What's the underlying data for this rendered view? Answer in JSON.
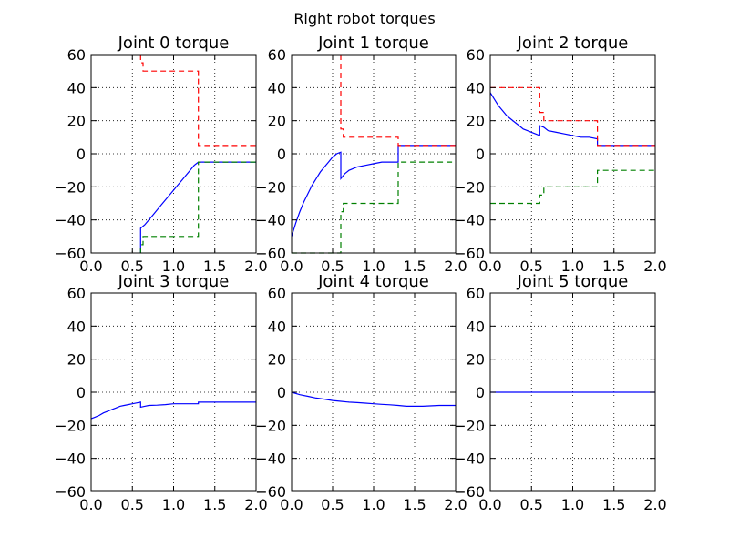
{
  "figure_title": "Right robot torques",
  "colors": {
    "blue": "#0000ff",
    "red": "#ff0000",
    "green": "#008000"
  },
  "chart_data": [
    {
      "type": "line",
      "title": "Joint 0 torque",
      "xlim": [
        0.0,
        2.0
      ],
      "ylim": [
        -60,
        60
      ],
      "xticks": [
        "0.0",
        "0.5",
        "1.0",
        "1.5",
        "2.0"
      ],
      "yticks": [
        "60",
        "40",
        "20",
        "0",
        "−20",
        "−40",
        "−60"
      ],
      "grid": true,
      "series": [
        {
          "color": "#0000ff",
          "style": "solid",
          "x": [
            0.6,
            0.6,
            0.65,
            0.7,
            0.75,
            0.8,
            0.85,
            0.9,
            0.95,
            1.0,
            1.05,
            1.1,
            1.15,
            1.2,
            1.25,
            1.3,
            1.35,
            1.4,
            1.5,
            1.6,
            1.7,
            1.8,
            1.9,
            2.0
          ],
          "y": [
            -60,
            -45,
            -43,
            -40,
            -37,
            -34,
            -31,
            -28,
            -25,
            -22,
            -19,
            -16,
            -13,
            -10,
            -7,
            -5,
            -5,
            -5,
            -5,
            -5,
            -5,
            -5,
            -5,
            -5
          ]
        },
        {
          "color": "#ff0000",
          "style": "dashed",
          "x": [
            0.6,
            0.6,
            0.63,
            0.63,
            1.0,
            1.2,
            1.2,
            1.3,
            1.3,
            2.0
          ],
          "y": [
            60,
            55,
            55,
            50,
            50,
            50,
            50,
            50,
            5,
            5
          ]
        },
        {
          "color": "#008000",
          "style": "dashed",
          "x": [
            0.6,
            0.6,
            0.63,
            0.63,
            1.0,
            1.2,
            1.3,
            1.3,
            2.0
          ],
          "y": [
            -60,
            -55,
            -55,
            -50,
            -50,
            -50,
            -50,
            -5,
            -5
          ]
        }
      ]
    },
    {
      "type": "line",
      "title": "Joint 1 torque",
      "xlim": [
        0.0,
        2.0
      ],
      "ylim": [
        -60,
        60
      ],
      "xticks": [
        "0.0",
        "0.5",
        "1.0",
        "1.5",
        "2.0"
      ],
      "yticks": [
        "60",
        "40",
        "20",
        "0",
        "−20",
        "−40",
        "−60"
      ],
      "grid": true,
      "series": [
        {
          "color": "#0000ff",
          "style": "solid",
          "x": [
            0.0,
            0.05,
            0.1,
            0.15,
            0.2,
            0.25,
            0.3,
            0.35,
            0.4,
            0.45,
            0.5,
            0.55,
            0.6,
            0.6,
            0.65,
            0.7,
            0.8,
            0.9,
            1.0,
            1.1,
            1.2,
            1.3,
            1.3,
            1.4,
            1.6,
            1.8,
            2.0
          ],
          "y": [
            -50,
            -42,
            -35,
            -29,
            -24,
            -19,
            -15,
            -11,
            -8,
            -5,
            -2,
            0,
            1,
            -15,
            -12,
            -10,
            -8,
            -7,
            -6,
            -5,
            -5,
            -5,
            5,
            5,
            5,
            5,
            5
          ]
        },
        {
          "color": "#ff0000",
          "style": "dashed",
          "x": [
            0.6,
            0.6,
            0.63,
            0.63,
            1.0,
            1.2,
            1.3,
            1.3,
            2.0
          ],
          "y": [
            60,
            15,
            15,
            10,
            10,
            10,
            10,
            5,
            5
          ]
        },
        {
          "color": "#008000",
          "style": "dashed",
          "x": [
            0.0,
            0.3,
            0.6,
            0.6,
            0.63,
            0.63,
            1.0,
            1.3,
            1.3,
            2.0
          ],
          "y": [
            -60,
            -60,
            -60,
            -35,
            -35,
            -30,
            -30,
            -30,
            -5,
            -5
          ]
        }
      ]
    },
    {
      "type": "line",
      "title": "Joint 2 torque",
      "xlim": [
        0.0,
        2.0
      ],
      "ylim": [
        -60,
        60
      ],
      "xticks": [
        "0.0",
        "0.5",
        "1.0",
        "1.5",
        "2.0"
      ],
      "yticks": [
        "60",
        "40",
        "20",
        "0",
        "−20",
        "−40",
        "−60"
      ],
      "grid": true,
      "series": [
        {
          "color": "#0000ff",
          "style": "solid",
          "x": [
            0.0,
            0.05,
            0.1,
            0.15,
            0.2,
            0.25,
            0.3,
            0.35,
            0.4,
            0.45,
            0.5,
            0.55,
            0.6,
            0.6,
            0.65,
            0.7,
            0.8,
            0.9,
            1.0,
            1.1,
            1.2,
            1.3,
            1.3,
            1.5,
            2.0
          ],
          "y": [
            37,
            33,
            29,
            26,
            23,
            21,
            19,
            17,
            15,
            14,
            13,
            12,
            11,
            17,
            16,
            14,
            13,
            12,
            11,
            10,
            10,
            9,
            5,
            5,
            5
          ]
        },
        {
          "color": "#ff0000",
          "style": "dashed",
          "x": [
            0.0,
            0.6,
            0.6,
            0.65,
            0.65,
            1.0,
            1.3,
            1.3,
            2.0
          ],
          "y": [
            40,
            40,
            25,
            25,
            20,
            20,
            20,
            5,
            5
          ]
        },
        {
          "color": "#008000",
          "style": "dashed",
          "x": [
            0.0,
            0.6,
            0.6,
            0.65,
            0.65,
            1.0,
            1.3,
            1.3,
            2.0
          ],
          "y": [
            -30,
            -30,
            -25,
            -25,
            -20,
            -20,
            -20,
            -10,
            -10
          ]
        }
      ]
    },
    {
      "type": "line",
      "title": "Joint 3 torque",
      "xlim": [
        0.0,
        2.0
      ],
      "ylim": [
        -60,
        60
      ],
      "xticks": [
        "0.0",
        "0.5",
        "1.0",
        "1.5",
        "2.0"
      ],
      "yticks": [
        "60",
        "40",
        "20",
        "0",
        "−20",
        "−40",
        "−60"
      ],
      "grid": true,
      "series": [
        {
          "color": "#0000ff",
          "style": "solid",
          "x": [
            0.0,
            0.05,
            0.1,
            0.15,
            0.2,
            0.25,
            0.3,
            0.35,
            0.4,
            0.45,
            0.5,
            0.55,
            0.6,
            0.6,
            0.65,
            0.7,
            0.8,
            0.9,
            1.0,
            1.2,
            1.3,
            1.3,
            1.5,
            2.0
          ],
          "y": [
            -16,
            -15,
            -14,
            -12.5,
            -11.5,
            -10.5,
            -9.5,
            -8.5,
            -8,
            -7.5,
            -7,
            -6.5,
            -6,
            -9,
            -8.5,
            -8,
            -7.8,
            -7.5,
            -7,
            -7,
            -7,
            -6,
            -6,
            -6
          ]
        }
      ]
    },
    {
      "type": "line",
      "title": "Joint 4 torque",
      "xlim": [
        0.0,
        2.0
      ],
      "ylim": [
        -60,
        60
      ],
      "xticks": [
        "0.0",
        "0.5",
        "1.0",
        "1.5",
        "2.0"
      ],
      "yticks": [
        "60",
        "40",
        "20",
        "0",
        "−20",
        "−40",
        "−60"
      ],
      "grid": true,
      "series": [
        {
          "color": "#0000ff",
          "style": "solid",
          "x": [
            0.0,
            0.1,
            0.2,
            0.3,
            0.4,
            0.5,
            0.6,
            0.7,
            0.8,
            0.9,
            1.0,
            1.1,
            1.2,
            1.3,
            1.4,
            1.6,
            1.8,
            2.0
          ],
          "y": [
            0,
            -1.5,
            -2.5,
            -3.5,
            -4.2,
            -5,
            -5.5,
            -6,
            -6.3,
            -6.6,
            -7,
            -7.3,
            -7.6,
            -8,
            -8.5,
            -8.5,
            -8,
            -8
          ]
        }
      ]
    },
    {
      "type": "line",
      "title": "Joint 5 torque",
      "xlim": [
        0.0,
        2.0
      ],
      "ylim": [
        -60,
        60
      ],
      "xticks": [
        "0.0",
        "0.5",
        "1.0",
        "1.5",
        "2.0"
      ],
      "yticks": [
        "60",
        "40",
        "20",
        "0",
        "−20",
        "−40",
        "−60"
      ],
      "grid": true,
      "series": [
        {
          "color": "#0000ff",
          "style": "solid",
          "x": [
            0.0,
            2.0
          ],
          "y": [
            0,
            0
          ]
        }
      ]
    }
  ]
}
